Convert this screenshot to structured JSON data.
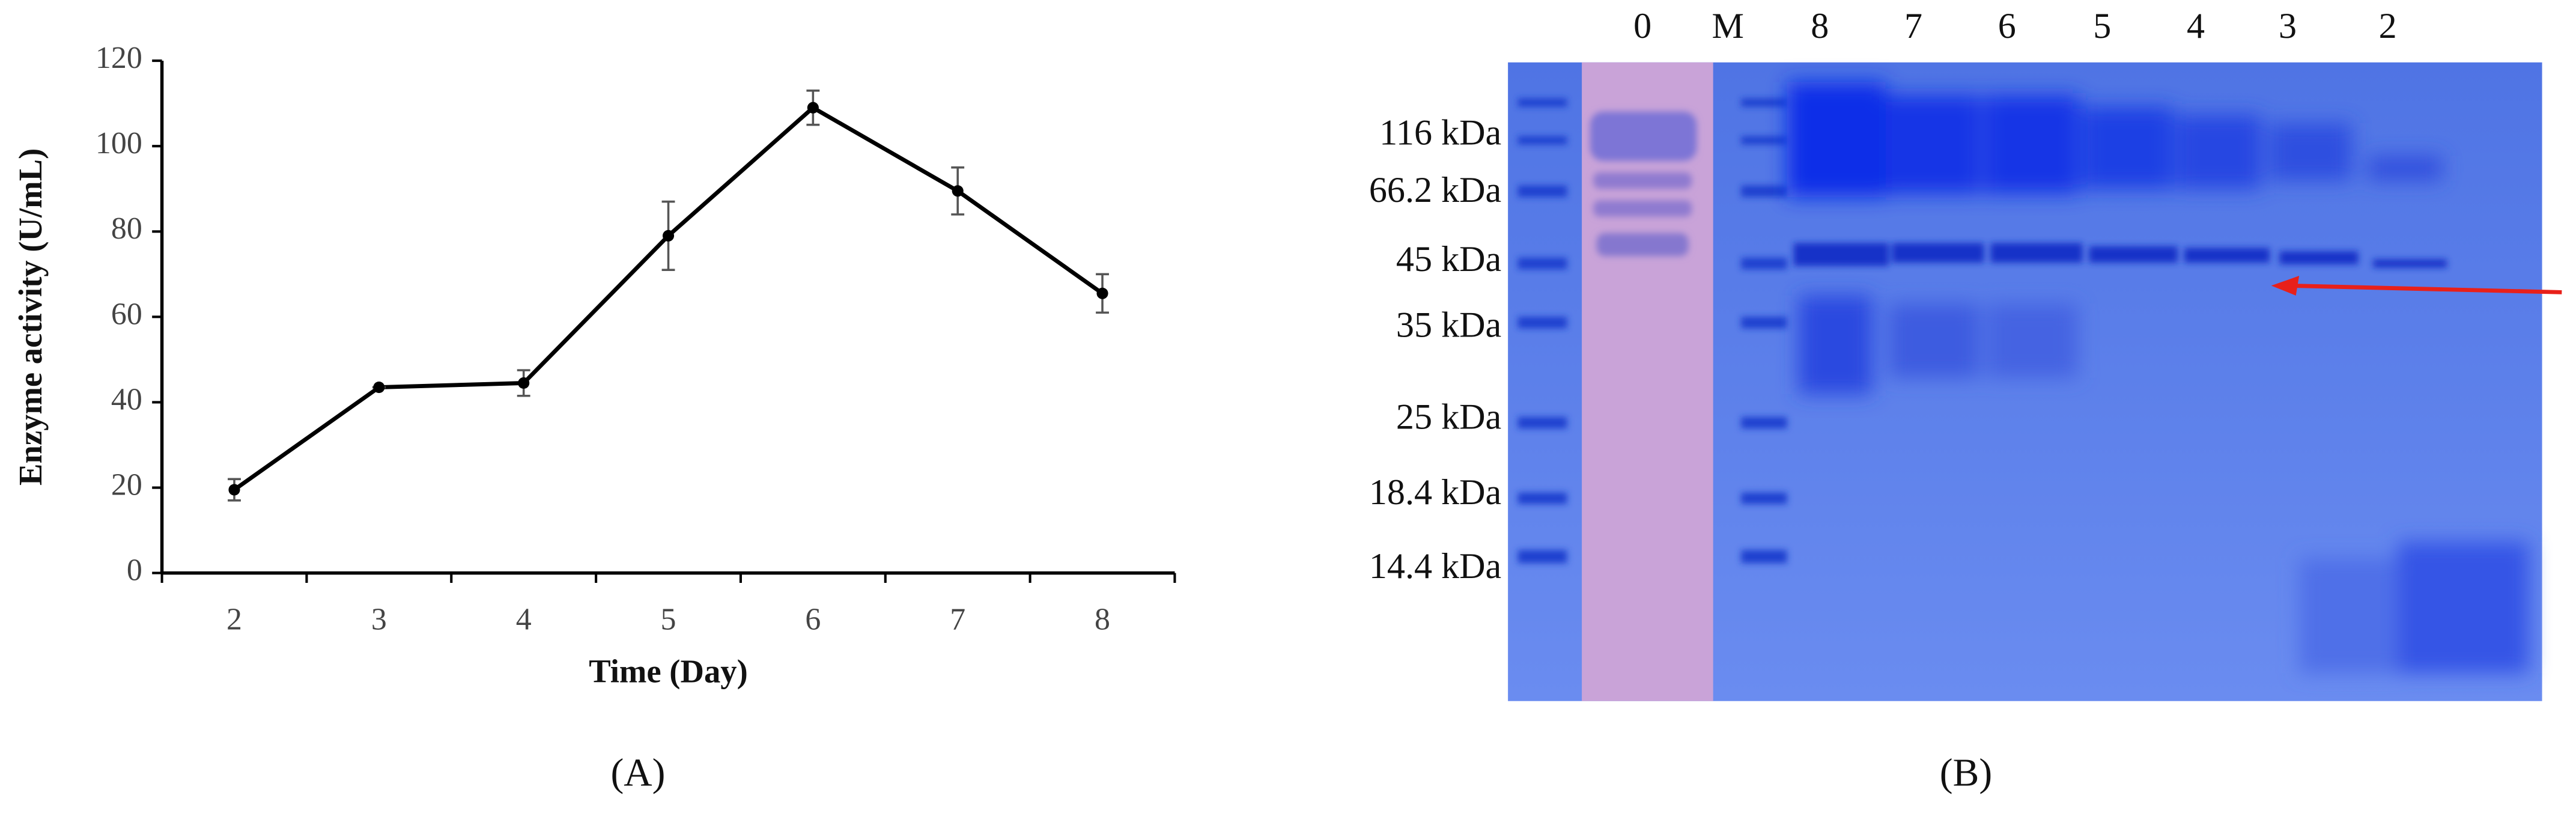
{
  "chart_data": {
    "type": "line",
    "x_label": "Time (Day)",
    "y_label": "Enzyme activity (U/mL)",
    "categories": [
      "2",
      "3",
      "4",
      "5",
      "6",
      "7",
      "8"
    ],
    "series": [
      {
        "color": "#000000",
        "values": [
          19.5,
          43.5,
          44.5,
          79,
          109,
          89.5,
          65.5
        ],
        "errors": [
          2.5,
          0,
          3,
          8,
          4,
          5.5,
          4.5
        ]
      }
    ],
    "ylim": [
      0,
      120
    ],
    "yticks": [
      0,
      20,
      40,
      60,
      80,
      100,
      120
    ],
    "grid": false
  },
  "gel": {
    "lanes": [
      "0",
      "M",
      "8",
      "7",
      "6",
      "5",
      "4",
      "3",
      "2"
    ],
    "markers": [
      "116 kDa",
      "66.2 kDa",
      "45 kDa",
      "35 kDa",
      "25 kDa",
      "18.4 kDa",
      "14.4 kDa"
    ]
  },
  "panel_labels": [
    "(A)",
    "(B)"
  ]
}
